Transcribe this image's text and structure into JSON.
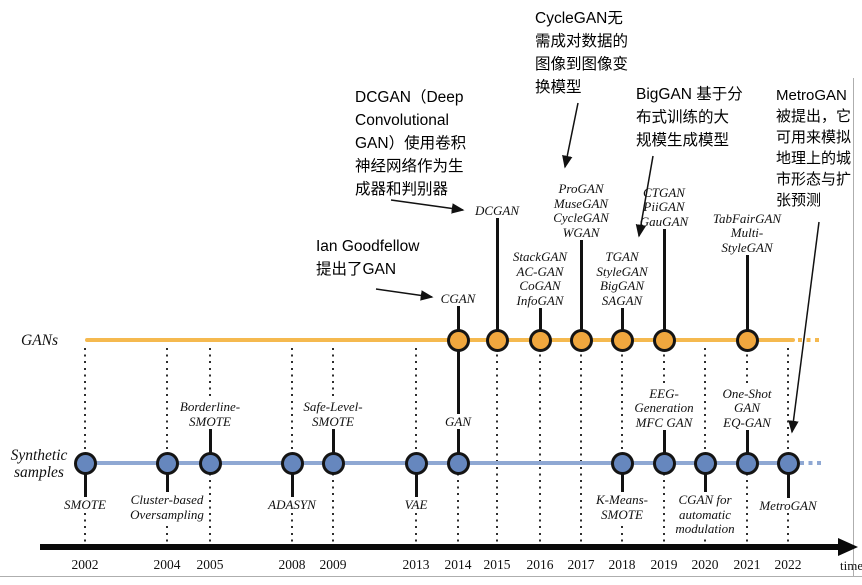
{
  "diagram": {
    "tracks": [
      {
        "id": "gans",
        "label": "GANs"
      },
      {
        "id": "synthetic",
        "label_lines": [
          "Synthetic",
          "samples"
        ]
      }
    ],
    "years": [
      "2002",
      "2004",
      "2005",
      "2008",
      "2009",
      "2013",
      "2014",
      "2015",
      "2016",
      "2017",
      "2018",
      "2019",
      "2020",
      "2021",
      "2022"
    ],
    "time_label": "time",
    "gan_events": [
      {
        "year": "2014",
        "lines": [
          "CGAN"
        ]
      },
      {
        "year": "2015",
        "lines": [
          "DCGAN"
        ]
      },
      {
        "year": "2016",
        "lines": [
          "StackGAN",
          "AC-GAN",
          "CoGAN",
          "InfoGAN"
        ]
      },
      {
        "year": "2017",
        "lines": [
          "ProGAN",
          "MuseGAN",
          "CycleGAN",
          "WGAN"
        ]
      },
      {
        "year": "2018",
        "lines": [
          "TGAN",
          "StyleGAN",
          "BigGAN",
          "SAGAN"
        ]
      },
      {
        "year": "2019",
        "lines": [
          "CTGAN",
          "PiiGAN",
          "GauGAN"
        ]
      },
      {
        "year": "2021",
        "lines": [
          "TabFairGAN",
          "Multi-",
          "StyleGAN"
        ]
      }
    ],
    "synthetic_events": [
      {
        "year": "2002",
        "side": "below",
        "lines": [
          "SMOTE"
        ]
      },
      {
        "year": "2004",
        "side": "below",
        "lines": [
          "Cluster-based",
          "Oversampling"
        ]
      },
      {
        "year": "2005",
        "side": "above",
        "lines": [
          "Borderline-",
          "SMOTE"
        ]
      },
      {
        "year": "2008",
        "side": "below",
        "lines": [
          "ADASYN"
        ]
      },
      {
        "year": "2009",
        "side": "above",
        "lines": [
          "Safe-Level-",
          "SMOTE"
        ]
      },
      {
        "year": "2013",
        "side": "below",
        "lines": [
          "VAE"
        ]
      },
      {
        "year": "2018",
        "side": "below",
        "lines": [
          "K-Means-",
          "SMOTE"
        ]
      },
      {
        "year": "2019",
        "side": "above",
        "lines": [
          "EEG-",
          "Generation",
          "MFC GAN"
        ]
      },
      {
        "year": "2020",
        "side": "below",
        "lines": [
          "CGAN for",
          "automatic",
          "modulation"
        ]
      },
      {
        "year": "2021",
        "side": "above",
        "lines": [
          "One-Shot",
          "GAN",
          "EQ-GAN"
        ]
      },
      {
        "year": "2022",
        "side": "below",
        "lines": [
          "MetroGAN"
        ]
      }
    ],
    "shared_event": {
      "year": "2014",
      "label": "GAN"
    },
    "annotations": [
      {
        "id": "cyclegan",
        "lines": [
          "CycleGAN无",
          "需成对数据的",
          "图像到图像变",
          "换模型"
        ]
      },
      {
        "id": "dcgan",
        "lines": [
          "DCGAN（Deep",
          "Convolutional",
          "GAN）使用卷积",
          "神经网络作为生",
          "成器和判别器"
        ]
      },
      {
        "id": "goodfellow",
        "lines": [
          "Ian Goodfellow",
          "提出了GAN"
        ]
      },
      {
        "id": "biggan",
        "lines": [
          "BigGAN 基于分",
          "布式训练的大",
          "规模生成模型"
        ]
      },
      {
        "id": "metrogan",
        "lines": [
          "MetroGAN",
          "被提出，它",
          "可用来模拟",
          "地理上的城",
          "市形态与扩",
          "张预测"
        ]
      }
    ],
    "colors": {
      "gan_line": "#F5B94F",
      "gan_node": "#F0A73E",
      "synthetic_line": "#8FA8D3",
      "synthetic_node": "#6687BE",
      "stem": "#121212"
    }
  }
}
